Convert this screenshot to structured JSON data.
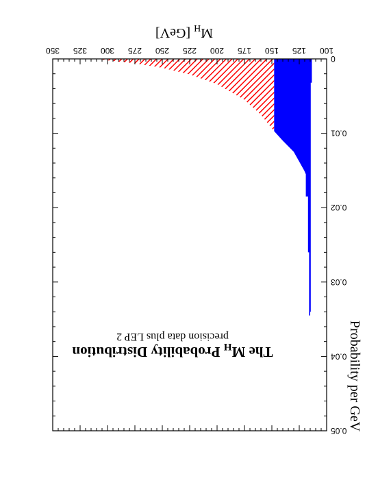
{
  "chart_data": {
    "type": "area",
    "title_main": "The M",
    "title_sub": "H",
    "title_rest": " Probability Distribution",
    "subtitle": "precision data plus LEP 2",
    "xlabel_main": "M",
    "xlabel_sub": "H",
    "xlabel_rest": " [GeV]",
    "ylabel": "Probability per GeV",
    "xlim": [
      100,
      350
    ],
    "ylim": [
      0,
      0.05
    ],
    "x_ticks": [
      "100",
      "125",
      "150",
      "175",
      "200",
      "225",
      "250",
      "275",
      "300",
      "325",
      "350"
    ],
    "y_ticks": [
      "0",
      "0.01",
      "0.02",
      "0.03",
      "0.04",
      "0.05"
    ],
    "series": [
      {
        "region": "below_150",
        "color": "#0000ff",
        "fill": "solid",
        "x": [
          113.5,
          113.5,
          114.5,
          114.5,
          115,
          115,
          116,
          116,
          117,
          117,
          119,
          119,
          120.5,
          130,
          140,
          148
        ],
        "y": [
          0.0005,
          0.0032,
          0.0032,
          0.034,
          0.034,
          0.0345,
          0.0345,
          0.026,
          0.026,
          0.0185,
          0.0185,
          0.0155,
          0.015,
          0.0125,
          0.011,
          0.0097
        ]
      },
      {
        "region": "above_150",
        "color": "#ff0000",
        "fill": "hatched",
        "x": [
          148,
          160,
          175,
          200,
          225,
          250,
          275,
          300,
          310
        ],
        "y": [
          0.0097,
          0.0075,
          0.0055,
          0.0034,
          0.0021,
          0.0012,
          0.0006,
          0.0002,
          0.0
        ]
      }
    ],
    "grid": false,
    "orientation": "rotated-180"
  }
}
